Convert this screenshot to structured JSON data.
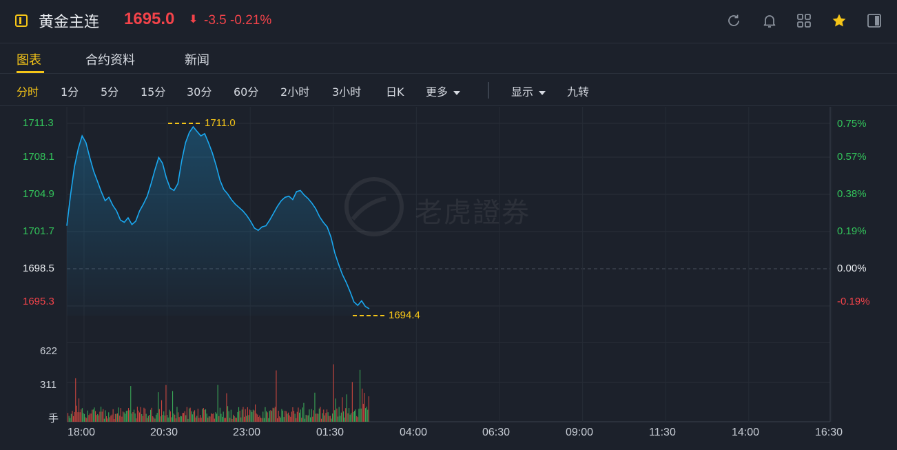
{
  "header": {
    "title": "黄金主连",
    "price": "1695.0",
    "arrow": "⬇",
    "change": "-3.5",
    "change_pct": "-0.21%",
    "tools": [
      {
        "icon": "refresh-icon"
      },
      {
        "icon": "bell-icon"
      },
      {
        "icon": "grid-icon"
      },
      {
        "icon": "star-icon"
      },
      {
        "icon": "sidebar-icon"
      }
    ]
  },
  "tabs": [
    {
      "label": "图表",
      "active": true
    },
    {
      "label": "合约资料",
      "active": false
    },
    {
      "label": "新闻",
      "active": false
    }
  ],
  "periods": {
    "intraday": "分时",
    "p1": "1分",
    "p5": "5分",
    "p15": "15分",
    "p30": "30分",
    "p60": "60分",
    "h2": "2小时",
    "h3": "3小时",
    "day": "日K",
    "more": "更多",
    "display": "显示",
    "nine": "九转"
  },
  "watermark": "老虎證券",
  "colors": {
    "accent": "#f5c518",
    "up": "#33c45b",
    "down": "#f2434a",
    "line": "#1aa8f0"
  },
  "chart_data": {
    "type": "line",
    "price_ticks": [
      "1711.3",
      "1708.1",
      "1704.9",
      "1701.7",
      "1698.5",
      "1695.3"
    ],
    "pct_ticks": [
      "0.75%",
      "0.57%",
      "0.38%",
      "0.19%",
      "0.00%",
      "-0.19%"
    ],
    "time_ticks": [
      "18:00",
      "20:30",
      "23:00",
      "01:30",
      "04:00",
      "06:30",
      "09:00",
      "11:30",
      "14:00",
      "16:30"
    ],
    "volume_ticks": [
      "622",
      "311",
      "手"
    ],
    "high_label": "1711.0",
    "low_label": "1694.4",
    "prev_close": 1698.5,
    "ylim": [
      1694.4,
      1711.3
    ],
    "price": [
      1702.3,
      1705.1,
      1707.5,
      1709.1,
      1710.2,
      1709.6,
      1708.3,
      1707.1,
      1706.2,
      1705.3,
      1704.5,
      1704.8,
      1704.1,
      1703.6,
      1702.8,
      1702.6,
      1703.0,
      1702.4,
      1702.7,
      1703.6,
      1704.2,
      1704.9,
      1706.0,
      1707.2,
      1708.3,
      1707.8,
      1706.5,
      1705.6,
      1705.4,
      1706.0,
      1708.0,
      1709.6,
      1710.5,
      1711.0,
      1710.6,
      1710.2,
      1710.4,
      1709.6,
      1708.7,
      1707.6,
      1706.3,
      1705.5,
      1705.1,
      1704.6,
      1704.2,
      1703.9,
      1703.6,
      1703.2,
      1702.7,
      1702.1,
      1701.9,
      1702.2,
      1702.3,
      1702.8,
      1703.4,
      1704.0,
      1704.5,
      1704.8,
      1704.9,
      1704.6,
      1705.3,
      1705.4,
      1705.0,
      1704.7,
      1704.3,
      1703.8,
      1703.1,
      1702.6,
      1702.2,
      1701.3,
      1699.9,
      1698.9,
      1698.0,
      1697.3,
      1696.5,
      1695.6,
      1695.3,
      1695.7,
      1695.2,
      1695.0
    ]
  }
}
